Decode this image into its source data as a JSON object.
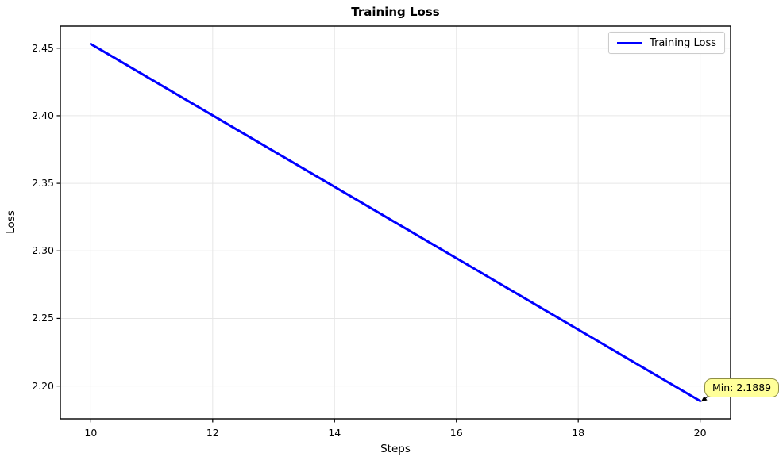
{
  "chart_data": {
    "type": "line",
    "title": "Training Loss",
    "xlabel": "Steps",
    "ylabel": "Loss",
    "x": [
      10,
      20
    ],
    "series": [
      {
        "name": "Training Loss",
        "color": "#0000ff",
        "values": [
          2.4531,
          2.1889
        ]
      }
    ],
    "xticks": [
      10,
      12,
      14,
      16,
      18,
      20
    ],
    "yticks": [
      "2.20",
      "2.25",
      "2.30",
      "2.35",
      "2.40",
      "2.45"
    ],
    "xlim": [
      9.5,
      20.5
    ],
    "ylim": [
      2.1757,
      2.4663
    ],
    "grid": true,
    "legend": {
      "position": "upper right",
      "entries": [
        "Training Loss"
      ]
    },
    "annotation": {
      "text": "Min: 2.1889",
      "x": 20,
      "y": 2.1889
    }
  },
  "colors": {
    "line": "#0000ff",
    "grid": "#e6e6e6",
    "spine": "#000000",
    "tick": "#000000",
    "annotation_bg": "#ffff99",
    "annotation_border": "#8f8f45",
    "legend_border": "#cccccc",
    "background": "#ffffff"
  }
}
